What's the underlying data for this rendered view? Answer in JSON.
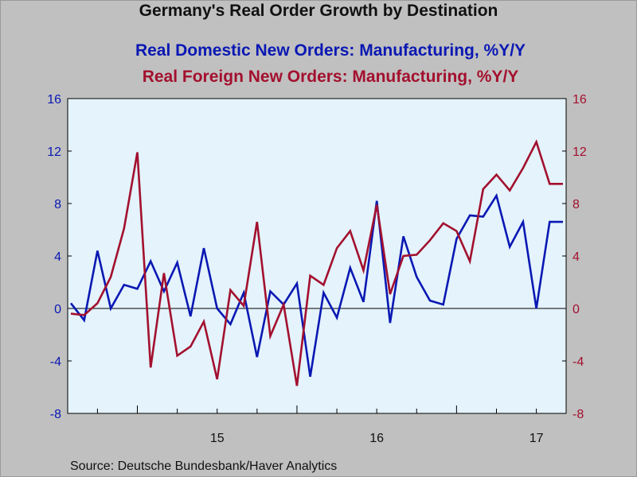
{
  "title": "Germany's Real Order Growth by Destination",
  "source": "Source:  Deutsche Bundesbank/Haver Analytics",
  "colors": {
    "domestic": "#0a18b3",
    "foreign": "#a3102e",
    "plot_bg": "#e4f3fc",
    "page_bg": "#c0c0c0"
  },
  "chart_data": {
    "type": "line",
    "title": "Germany's Real Order Growth by Destination",
    "xlabel": "",
    "ylabel": "",
    "x_ticks": [
      "15",
      "16",
      "17"
    ],
    "x_tick_months": [
      "2015-01",
      "2016-01",
      "2017-01"
    ],
    "x_range": [
      "2014-08",
      "2017-09"
    ],
    "ylim": [
      -8,
      16
    ],
    "y_ticks": [
      -8,
      -4,
      0,
      4,
      8,
      12,
      16
    ],
    "right_axis": true,
    "zero_line": true,
    "grid": false,
    "x": [
      "2014-08",
      "2014-09",
      "2014-10",
      "2014-11",
      "2014-12",
      "2015-01",
      "2015-02",
      "2015-03",
      "2015-04",
      "2015-05",
      "2015-06",
      "2015-07",
      "2015-08",
      "2015-09",
      "2015-10",
      "2015-11",
      "2015-12",
      "2016-01",
      "2016-02",
      "2016-03",
      "2016-04",
      "2016-05",
      "2016-06",
      "2016-07",
      "2016-08",
      "2016-09",
      "2016-10",
      "2016-11",
      "2016-12",
      "2017-01",
      "2017-02",
      "2017-03",
      "2017-04",
      "2017-05",
      "2017-06",
      "2017-07",
      "2017-08",
      "2017-09"
    ],
    "series": [
      {
        "name": "Real Domestic New Orders: Manufacturing, %Y/Y",
        "axis": "left",
        "color": "#0a18b3",
        "values": [
          0.4,
          -0.9,
          4.4,
          0.0,
          1.8,
          1.5,
          3.6,
          1.3,
          3.5,
          -0.6,
          4.6,
          0.0,
          -1.2,
          1.2,
          -3.7,
          1.3,
          0.3,
          1.9,
          -5.2,
          1.2,
          -0.7,
          3.1,
          0.5,
          8.2,
          -1.1,
          5.5,
          2.4,
          0.6,
          0.3,
          5.3,
          7.1,
          7.0,
          8.6,
          4.7,
          6.6,
          0.0,
          6.6,
          6.6
        ]
      },
      {
        "name": "Real Foreign New Orders: Manufacturing, %Y/Y",
        "axis": "right",
        "color": "#a3102e",
        "values": [
          -0.4,
          -0.5,
          0.4,
          2.4,
          6.1,
          11.9,
          -4.5,
          2.7,
          -3.6,
          -2.9,
          -1.0,
          -5.4,
          1.4,
          0.2,
          6.6,
          -2.1,
          0.3,
          -5.9,
          2.5,
          1.8,
          4.6,
          5.9,
          2.9,
          7.9,
          1.1,
          4.0,
          4.1,
          5.2,
          6.5,
          5.9,
          3.6,
          9.1,
          10.2,
          9.0,
          10.7,
          12.7,
          9.5,
          9.5
        ]
      }
    ]
  },
  "legend": {
    "domestic": "Real Domestic New Orders: Manufacturing, %Y/Y",
    "foreign": "Real Foreign New Orders: Manufacturing, %Y/Y"
  }
}
